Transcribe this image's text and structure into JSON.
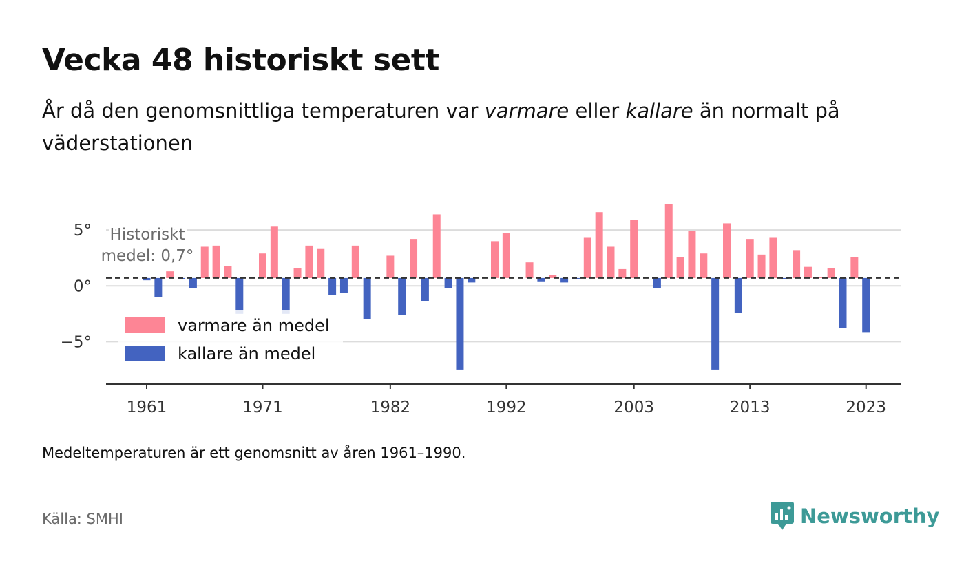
{
  "title": "Vecka 48 historiskt sett",
  "subtitle": {
    "part1": "År då den genomsnittliga temperaturen var ",
    "warmer": "varmare",
    "part2": " eller ",
    "colder": "kallare",
    "part3": " än normalt på väderstationen"
  },
  "note": "Medeltemperaturen är ett genomsnitt av åren 1961–1990.",
  "source": "Källa: SMHI",
  "brand": "Newsworthy",
  "colors": {
    "warm": "#fd8595",
    "cold": "#4363c0",
    "brand": "#3d9a97"
  },
  "chart_data": {
    "type": "bar",
    "mean": 0.7,
    "mean_label_line1": "Historiskt",
    "mean_label_line2": "medel: 0,7°",
    "ylim": [
      -8.8,
      8.4
    ],
    "yticks": [
      5,
      0,
      -5
    ],
    "ytick_labels": [
      "5°",
      "0°",
      "−5°"
    ],
    "xtick_years": [
      1961,
      1971,
      1982,
      1992,
      2003,
      2013,
      2023
    ],
    "xtick_labels": [
      "1961",
      "1971",
      "1982",
      "1992",
      "2003",
      "2013",
      "2023"
    ],
    "legend": {
      "warm": "varmare än medel",
      "cold": "kallare än medel",
      "placement": "bottom-left"
    },
    "x": [
      1961,
      1962,
      1963,
      1964,
      1965,
      1966,
      1967,
      1968,
      1969,
      1970,
      1971,
      1972,
      1973,
      1974,
      1975,
      1976,
      1977,
      1978,
      1979,
      1980,
      1981,
      1982,
      1983,
      1984,
      1985,
      1986,
      1987,
      1988,
      1989,
      1990,
      1991,
      1992,
      1993,
      1994,
      1995,
      1996,
      1997,
      1998,
      1999,
      2000,
      2001,
      2002,
      2003,
      2004,
      2005,
      2006,
      2007,
      2008,
      2009,
      2010,
      2011,
      2012,
      2013,
      2014,
      2015,
      2016,
      2017,
      2018,
      2019,
      2020,
      2021,
      2022,
      2023
    ],
    "values": [
      0.5,
      -1.0,
      1.3,
      0.6,
      -0.2,
      3.5,
      3.6,
      1.8,
      -2.5,
      0.7,
      2.9,
      5.3,
      -2.5,
      1.6,
      3.6,
      3.3,
      -0.8,
      -0.6,
      3.6,
      -3.0,
      0.7,
      2.7,
      -2.6,
      4.2,
      -1.4,
      6.4,
      -0.2,
      -7.5,
      0.3,
      0.7,
      4.0,
      4.7,
      0.7,
      2.1,
      0.4,
      1.0,
      0.3,
      0.6,
      4.3,
      6.6,
      3.5,
      1.5,
      5.9,
      0.7,
      -0.2,
      7.3,
      2.6,
      4.9,
      2.9,
      -7.5,
      5.6,
      -2.4,
      4.2,
      2.8,
      4.3,
      0.6,
      3.2,
      1.7,
      0.8,
      1.6,
      -3.8,
      2.6,
      -4.2
    ]
  }
}
